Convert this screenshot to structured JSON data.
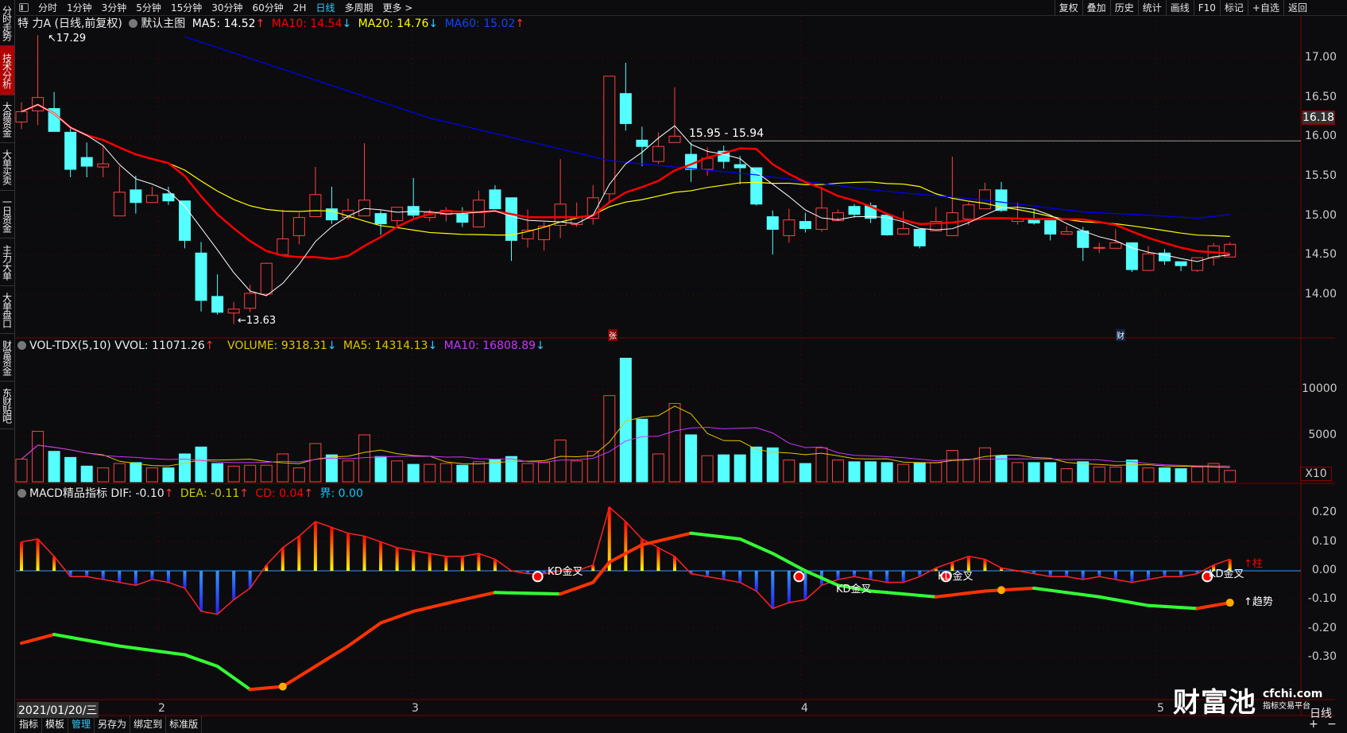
{
  "topbar": {
    "tabs": [
      "分时",
      "1分钟",
      "3分钟",
      "5分钟",
      "15分钟",
      "30分钟",
      "60分钟",
      "2H",
      "日线",
      "多周期",
      "更多 >"
    ],
    "active": "日线",
    "right": [
      "复权",
      "叠加",
      "历史",
      "统计",
      "画线",
      "F10",
      "标记",
      "+自选",
      "返回"
    ]
  },
  "sidebar": {
    "items": [
      "分时走势",
      "技术分析",
      "大盘资金",
      "大单买卖",
      "一日资金",
      "主力大单",
      "大单盘口",
      "财富资金",
      "东财贴吧"
    ],
    "active": "技术分析"
  },
  "price_legend": {
    "title": "特 力A (日线,前复权)",
    "template": "默认主图",
    "ma5": "MA5: 14.52",
    "ma5_dir": "↑",
    "ma10": "MA10: 14.54",
    "ma10_dir": "↓",
    "ma20": "MA20: 14.76",
    "ma20_dir": "↓",
    "ma60": "MA60: 15.02",
    "ma60_dir": "↑"
  },
  "vol_legend": {
    "title": "VOL-TDX(5,10) VVOL: 11071.26",
    "title_dir": "↑",
    "volume": "VOLUME: 9318.31",
    "volume_dir": "↓",
    "ma5": "MA5: 14314.13",
    "ma5_dir": "↓",
    "ma10": "MA10: 16808.89",
    "ma10_dir": "↓"
  },
  "macd_legend": {
    "title": "MACD精品指标 DIF: -0.10",
    "title_dir": "↑",
    "dea": "DEA: -0.11",
    "dea_dir": "↑",
    "cd": "CD: 0.04",
    "cd_dir": "↑",
    "jie": "界: 0.00"
  },
  "price_axis": {
    "ticks": [
      "17.00",
      "16.50",
      "16.00",
      "15.50",
      "15.00",
      "14.50",
      "14.00"
    ],
    "current": "16.18"
  },
  "vol_axis": {
    "ticks": [
      "10000",
      "5000"
    ],
    "unit": "X10"
  },
  "macd_axis": {
    "ticks": [
      "0.20",
      "0.10",
      "0.00",
      "-0.10",
      "-0.20",
      "-0.30"
    ]
  },
  "annotations": {
    "high": "17.29",
    "low": "13.63",
    "range": "15.95 - 15.94",
    "badge1": "张",
    "badge2": "财"
  },
  "signals": {
    "kd": [
      "KD金叉",
      "KD金叉",
      "KD金叉",
      "KD金叉"
    ],
    "bar": "↑柱",
    "trend": "↑趋势"
  },
  "date_axis": {
    "cursor_date": "2021/01/20/三",
    "months": [
      "2",
      "3",
      "4",
      "5"
    ]
  },
  "bottombar": {
    "items": [
      "指标",
      "模板",
      "管理",
      "另存为",
      "绑定到",
      "标准版"
    ],
    "active": "管理"
  },
  "bottom_right": {
    "period": "日线",
    "plus": "+",
    "minus": "−"
  },
  "logo": {
    "name": "财富池",
    "domain": "cfchi.com",
    "tagline": "指标交易平台"
  },
  "colors": {
    "up": "#ff4040",
    "down": "#54ffff",
    "ma5": "#ffffff",
    "ma10": "#ff0000",
    "ma20": "#ffff00",
    "ma60": "#0000ff",
    "vma5": "#e6c200",
    "vma10": "#cc33ff"
  },
  "chart_data": {
    "type": "candlestick",
    "price_ylim": [
      13.5,
      17.3
    ],
    "ohlc": [
      [
        16.19,
        16.32,
        16.44,
        16.1
      ],
      [
        16.33,
        16.5,
        17.29,
        16.15
      ],
      [
        16.36,
        16.07,
        16.57,
        16.07
      ],
      [
        16.06,
        15.59,
        16.14,
        15.49
      ],
      [
        15.74,
        15.63,
        15.93,
        15.49
      ],
      [
        15.62,
        15.66,
        15.9,
        15.49
      ],
      [
        15.0,
        15.3,
        15.63,
        15.0
      ],
      [
        15.33,
        15.17,
        15.51,
        15.03
      ],
      [
        15.17,
        15.26,
        15.37,
        15.17
      ],
      [
        15.28,
        15.19,
        15.37,
        15.14
      ],
      [
        15.19,
        14.69,
        15.19,
        14.59
      ],
      [
        14.53,
        13.93,
        14.67,
        13.79
      ],
      [
        13.98,
        13.78,
        14.26,
        13.75
      ],
      [
        13.77,
        13.82,
        13.91,
        13.63
      ],
      [
        13.83,
        14.02,
        14.13,
        13.78
      ],
      [
        14.01,
        14.4,
        14.41,
        14.0
      ],
      [
        14.51,
        14.71,
        15.08,
        14.51
      ],
      [
        14.75,
        14.98,
        15.04,
        14.64
      ],
      [
        14.99,
        15.27,
        15.62,
        14.99
      ],
      [
        15.09,
        14.95,
        15.37,
        14.9
      ],
      [
        14.98,
        15.07,
        15.22,
        14.95
      ],
      [
        15.0,
        15.2,
        15.92,
        15.0
      ],
      [
        15.03,
        14.9,
        15.07,
        14.76
      ],
      [
        14.94,
        15.11,
        15.11,
        14.85
      ],
      [
        15.12,
        15.01,
        15.48,
        14.98
      ],
      [
        14.98,
        15.04,
        15.08,
        14.93
      ],
      [
        15.02,
        15.07,
        15.11,
        14.93
      ],
      [
        15.02,
        14.92,
        15.11,
        14.86
      ],
      [
        14.86,
        15.2,
        15.32,
        14.86
      ],
      [
        15.33,
        15.09,
        15.39,
        15.09
      ],
      [
        15.23,
        14.69,
        15.23,
        14.43
      ],
      [
        14.71,
        14.82,
        15.08,
        14.6
      ],
      [
        14.7,
        14.87,
        14.92,
        14.56
      ],
      [
        14.88,
        15.15,
        15.72,
        14.72
      ],
      [
        14.89,
        14.98,
        15.17,
        14.86
      ],
      [
        14.97,
        15.23,
        15.39,
        14.89
      ],
      [
        15.28,
        16.77,
        16.77,
        15.18
      ],
      [
        16.55,
        16.17,
        16.94,
        16.08
      ],
      [
        15.96,
        15.88,
        16.13,
        15.63
      ],
      [
        15.69,
        15.88,
        16.06,
        15.66
      ],
      [
        15.93,
        16.01,
        16.63,
        15.93
      ],
      [
        15.78,
        15.59,
        15.93,
        15.43
      ],
      [
        15.59,
        15.73,
        15.87,
        15.51
      ],
      [
        15.82,
        15.69,
        15.89,
        15.6
      ],
      [
        15.65,
        15.61,
        15.76,
        15.4
      ],
      [
        15.61,
        15.15,
        15.61,
        15.13
      ],
      [
        14.99,
        14.83,
        15.07,
        14.51
      ],
      [
        14.75,
        14.95,
        15.09,
        14.66
      ],
      [
        14.93,
        14.84,
        15.04,
        14.79
      ],
      [
        14.83,
        15.1,
        15.37,
        14.8
      ],
      [
        14.94,
        15.04,
        15.08,
        14.98
      ],
      [
        15.12,
        15.02,
        15.15,
        14.98
      ],
      [
        15.13,
        14.97,
        15.17,
        14.91
      ],
      [
        15.01,
        14.76,
        15.01,
        14.75
      ],
      [
        14.77,
        14.84,
        15.06,
        14.77
      ],
      [
        14.83,
        14.62,
        14.83,
        14.59
      ],
      [
        14.81,
        14.93,
        15.11,
        14.81
      ],
      [
        14.75,
        15.04,
        15.75,
        14.75
      ],
      [
        14.96,
        15.14,
        15.17,
        14.88
      ],
      [
        15.09,
        15.33,
        15.42,
        15.09
      ],
      [
        15.33,
        15.07,
        15.43,
        15.05
      ],
      [
        14.93,
        14.97,
        15.17,
        14.89
      ],
      [
        14.96,
        14.91,
        15.08,
        14.89
      ],
      [
        14.94,
        14.77,
        14.94,
        14.69
      ],
      [
        14.77,
        14.8,
        14.87,
        14.77
      ],
      [
        14.81,
        14.6,
        14.86,
        14.43
      ],
      [
        14.6,
        14.6,
        14.66,
        14.53
      ],
      [
        14.59,
        14.66,
        14.83,
        14.59
      ],
      [
        14.66,
        14.32,
        14.66,
        14.29
      ],
      [
        14.31,
        14.52,
        14.62,
        14.31
      ],
      [
        14.53,
        14.43,
        14.58,
        14.38
      ],
      [
        14.42,
        14.37,
        14.42,
        14.3
      ],
      [
        14.31,
        14.47,
        14.47,
        14.29
      ],
      [
        14.47,
        14.62,
        14.66,
        14.37
      ],
      [
        14.48,
        14.64,
        14.67,
        14.48
      ]
    ],
    "ma60_points": [
      [
        10,
        17.27
      ],
      [
        25,
        16.24
      ],
      [
        36,
        15.7
      ],
      [
        45,
        15.52
      ],
      [
        52,
        15.33
      ],
      [
        59,
        15.2
      ],
      [
        65,
        15.05
      ],
      [
        69,
        15.01
      ],
      [
        72,
        14.97
      ],
      [
        74,
        15.02
      ]
    ],
    "volume": [
      2450,
      5470,
      3300,
      2640,
      1700,
      1510,
      1980,
      2080,
      1510,
      1510,
      3020,
      3770,
      1980,
      1700,
      1790,
      1790,
      3020,
      1510,
      4150,
      2920,
      2260,
      5090,
      2740,
      2260,
      1890,
      1890,
      1980,
      1790,
      2170,
      2450,
      2740,
      1980,
      2080,
      4530,
      2260,
      3300,
      9340,
      13400,
      6790,
      3020,
      8490,
      5090,
      2830,
      2920,
      2920,
      3770,
      3680,
      2360,
      1980,
      3680,
      2360,
      2170,
      2170,
      2080,
      1890,
      2080,
      2080,
      3400,
      2450,
      3680,
      2830,
      2080,
      2080,
      2080,
      1420,
      2170,
      1600,
      1600,
      2360,
      1510,
      1510,
      1420,
      1600,
      1980,
      1230
    ],
    "vol_ylim": [
      0,
      14000
    ],
    "macd_cd": [
      0.1,
      0.11,
      0.05,
      -0.02,
      -0.02,
      -0.03,
      -0.04,
      -0.05,
      -0.03,
      -0.04,
      -0.06,
      -0.14,
      -0.15,
      -0.1,
      -0.06,
      0.02,
      0.08,
      0.12,
      0.17,
      0.15,
      0.13,
      0.12,
      0.1,
      0.08,
      0.07,
      0.06,
      0.05,
      0.05,
      0.06,
      0.04,
      0.0,
      -0.01,
      -0.01,
      0.0,
      0.0,
      0.02,
      0.22,
      0.17,
      0.11,
      0.08,
      0.05,
      -0.01,
      -0.02,
      -0.03,
      -0.04,
      -0.07,
      -0.13,
      -0.11,
      -0.1,
      -0.05,
      -0.03,
      -0.02,
      -0.03,
      -0.04,
      -0.04,
      -0.02,
      0.01,
      0.03,
      0.05,
      0.04,
      0.01,
      0.0,
      -0.01,
      -0.02,
      -0.02,
      -0.03,
      -0.02,
      -0.03,
      -0.04,
      -0.03,
      -0.02,
      -0.02,
      -0.01,
      0.02,
      0.04
    ],
    "macd_trend_points": [
      [
        0,
        -0.25
      ],
      [
        2,
        -0.22
      ],
      [
        6,
        -0.26
      ],
      [
        10,
        -0.29
      ],
      [
        12,
        -0.33
      ],
      [
        14,
        -0.41
      ],
      [
        16,
        -0.4
      ],
      [
        18,
        -0.33
      ],
      [
        20,
        -0.26
      ],
      [
        22,
        -0.18
      ],
      [
        24,
        -0.14
      ],
      [
        27,
        -0.1
      ],
      [
        29,
        -0.075
      ],
      [
        33,
        -0.08
      ],
      [
        35,
        -0.04
      ],
      [
        36,
        0.03
      ],
      [
        38,
        0.09
      ],
      [
        41,
        0.13
      ],
      [
        44,
        0.11
      ],
      [
        46,
        0.06
      ],
      [
        48,
        0.0
      ],
      [
        50,
        -0.05
      ],
      [
        52,
        -0.07
      ],
      [
        54,
        -0.08
      ],
      [
        56,
        -0.09
      ],
      [
        59,
        -0.07
      ],
      [
        62,
        -0.06
      ],
      [
        66,
        -0.09
      ],
      [
        69,
        -0.12
      ],
      [
        72,
        -0.13
      ],
      [
        74,
        -0.11
      ]
    ],
    "macd_ylim": [
      -0.45,
      0.27
    ]
  }
}
